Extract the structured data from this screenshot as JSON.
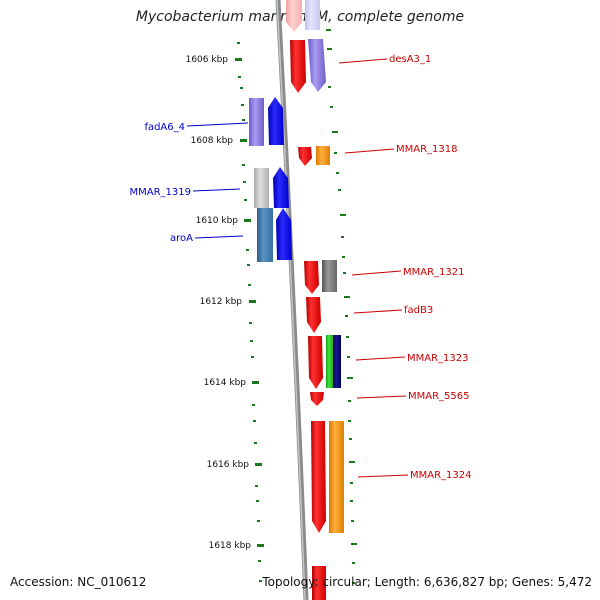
{
  "title": "Mycobacterium marinum M, complete genome",
  "footer": {
    "accession": "Accession: NC_010612",
    "topology": "Topology: circular; Length: 6,636,827 bp; Genes: 5,472"
  },
  "colors": {
    "backbone": "#8a8a8a",
    "ticks": "#1a7a1a",
    "label_forward": "#0000cc",
    "label_reverse": "#cc0000"
  },
  "ticks": [
    {
      "label": "1606 kbp"
    },
    {
      "label": "1608 kbp"
    },
    {
      "label": "1610 kbp"
    },
    {
      "label": "1612 kbp"
    },
    {
      "label": "1614 kbp"
    },
    {
      "label": "1616 kbp"
    },
    {
      "label": "1618 kbp"
    }
  ],
  "labels": [
    {
      "text": "desA3_1",
      "strand": "reverse"
    },
    {
      "text": "fadA6_4",
      "strand": "forward"
    },
    {
      "text": "MMAR_1318",
      "strand": "reverse"
    },
    {
      "text": "MMAR_1319",
      "strand": "forward"
    },
    {
      "text": "aroA",
      "strand": "forward"
    },
    {
      "text": "MMAR_1321",
      "strand": "reverse"
    },
    {
      "text": "fadB3",
      "strand": "reverse"
    },
    {
      "text": "MMAR_1323",
      "strand": "reverse"
    },
    {
      "text": "MMAR_5565",
      "strand": "reverse"
    },
    {
      "text": "MMAR_1324",
      "strand": "reverse"
    }
  ]
}
